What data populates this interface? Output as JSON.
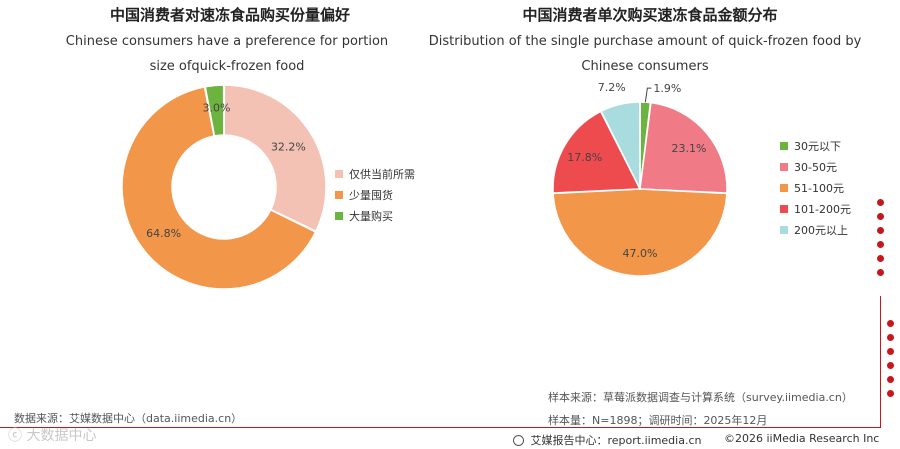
{
  "chart_data": [
    {
      "type": "donut",
      "title": "中国消费者对速冻食品购买份量偏好",
      "subtitle": "Chinese consumers have a preference for portion size ofquick-frozen food",
      "unit": "%",
      "categories": [
        "仅供当前所需",
        "少量囤货",
        "大量购买"
      ],
      "values": [
        32.2,
        64.8,
        3.0
      ],
      "data_labels": [
        "32.2%",
        "64.8%",
        "3.0%"
      ],
      "colors": [
        "#f4c2b4",
        "#f2964a",
        "#6cb33f"
      ],
      "legend": "right"
    },
    {
      "type": "pie",
      "title": "中国消费者单次购买速冻食品金额分布",
      "subtitle": "Distribution of the single purchase amount of quick-frozen food by Chinese consumers",
      "unit": "%",
      "categories": [
        "30元以下",
        "30-50元",
        "51-100元",
        "101-200元",
        "200元以上"
      ],
      "values": [
        1.9,
        23.1,
        47.0,
        17.8,
        7.2
      ],
      "data_labels": [
        "1.9%",
        "23.1%",
        "47.0%",
        "17.8%",
        "7.2%"
      ],
      "colors": [
        "#6cb33f",
        "#f07a86",
        "#f2964a",
        "#ee4b4f",
        "#a9dcde"
      ],
      "legend": "right"
    }
  ],
  "footer": {
    "source_left": "数据来源：艾媒数据中心（data.iimedia.cn）",
    "sample_source": "样本来源：草莓派数据调查与计算系统（survey.iimedia.cn）",
    "sample_size": "样本量：N=1898；调研时间：2025年12月",
    "brand": "艾媒报告中心：report.iimedia.cn",
    "copyright": "©2026  iiMedia Research  Inc",
    "watermark": "大数据中心"
  }
}
